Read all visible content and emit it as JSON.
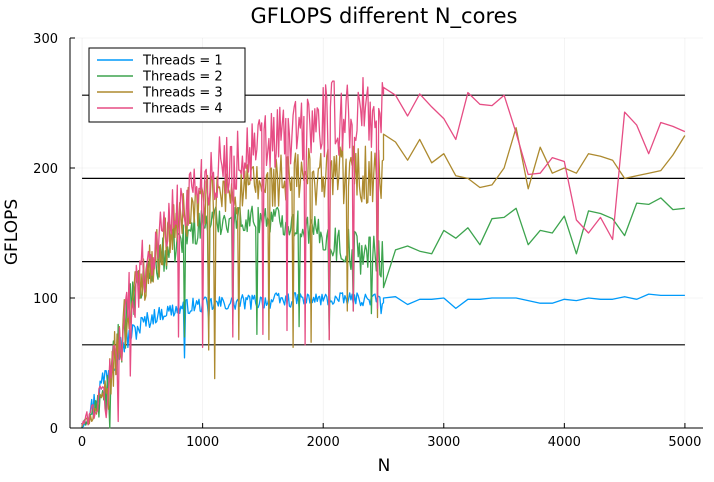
{
  "chart_data": {
    "type": "line",
    "title": "GFLOPS different N_cores",
    "xlabel": "N",
    "ylabel": "GFLOPS",
    "xlim": [
      -100,
      5150
    ],
    "ylim": [
      0,
      300
    ],
    "xticks": [
      0,
      1000,
      2000,
      3000,
      4000,
      5000
    ],
    "yticks": [
      0,
      100,
      200,
      300
    ],
    "grid": true,
    "legend_position": "top-left",
    "reference_lines": {
      "y": [
        64,
        128,
        192,
        256
      ],
      "x_range": [
        0,
        5000
      ],
      "color": "#000000"
    },
    "series": [
      {
        "name": "Threads = 1",
        "color": "#009AFA",
        "dense_segment": {
          "x_start": 0,
          "x_end": 2500,
          "step": 10,
          "envelope": [
            [
              0,
              0,
              3
            ],
            [
              100,
              8,
              30
            ],
            [
              200,
              30,
              55
            ],
            [
              300,
              50,
              72
            ],
            [
              400,
              62,
              80
            ],
            [
              500,
              72,
              88
            ],
            [
              600,
              80,
              92
            ],
            [
              700,
              84,
              95
            ],
            [
              800,
              86,
              98
            ],
            [
              900,
              88,
              100
            ],
            [
              1200,
              90,
              102
            ],
            [
              1600,
              92,
              104
            ],
            [
              2000,
              94,
              104
            ],
            [
              2500,
              94,
              104
            ]
          ],
          "dips": [
            [
              850,
              54
            ],
            [
              900,
              90
            ],
            [
              1050,
              84
            ],
            [
              2480,
              88
            ]
          ]
        },
        "x": [
          2500,
          2600,
          2700,
          2800,
          2900,
          3000,
          3100,
          3200,
          3300,
          3400,
          3500,
          3600,
          3700,
          3800,
          3900,
          4000,
          4100,
          4200,
          4300,
          4400,
          4500,
          4600,
          4700,
          4800,
          4900,
          5000
        ],
        "values": [
          100,
          101,
          95,
          99,
          99,
          100,
          92,
          99,
          99,
          100,
          100,
          100,
          98,
          96,
          96,
          99,
          98,
          100,
          99,
          99,
          101,
          99,
          103,
          102,
          102,
          102
        ]
      },
      {
        "name": "Threads = 2",
        "color": "#3DA44E",
        "dense_segment": {
          "x_start": 0,
          "x_end": 2500,
          "step": 10,
          "envelope": [
            [
              0,
              0,
              3
            ],
            [
              200,
              10,
              40
            ],
            [
              300,
              40,
              85
            ],
            [
              400,
              75,
              112
            ],
            [
              500,
              95,
              128
            ],
            [
              600,
              110,
              140
            ],
            [
              700,
              120,
              150
            ],
            [
              800,
              130,
              158
            ],
            [
              900,
              138,
              165
            ],
            [
              1000,
              145,
              170
            ],
            [
              1200,
              150,
              172
            ],
            [
              1400,
              150,
              172
            ],
            [
              1600,
              150,
              172
            ],
            [
              1800,
              145,
              168
            ],
            [
              2000,
              135,
              160
            ],
            [
              2200,
              120,
              155
            ],
            [
              2500,
              115,
              150
            ]
          ],
          "dips": [
            [
              230,
              0
            ],
            [
              850,
              70
            ],
            [
              1050,
              70
            ],
            [
              1250,
              80
            ],
            [
              1450,
              72
            ],
            [
              1800,
              78
            ],
            [
              2050,
              70
            ],
            [
              2250,
              90
            ],
            [
              2400,
              88
            ]
          ]
        },
        "x": [
          2500,
          2600,
          2700,
          2800,
          2900,
          3000,
          3100,
          3200,
          3300,
          3400,
          3500,
          3600,
          3700,
          3800,
          3900,
          4000,
          4100,
          4200,
          4300,
          4400,
          4500,
          4600,
          4700,
          4800,
          4900,
          5000
        ],
        "values": [
          108,
          137,
          140,
          136,
          134,
          152,
          146,
          154,
          141,
          161,
          162,
          169,
          141,
          152,
          150,
          163,
          134,
          167,
          165,
          161,
          148,
          173,
          172,
          177,
          168,
          169
        ]
      },
      {
        "name": "Threads = 3",
        "color": "#AD8A2F",
        "dense_segment": {
          "x_start": 0,
          "x_end": 2500,
          "step": 10,
          "envelope": [
            [
              0,
              0,
              3
            ],
            [
              200,
              8,
              38
            ],
            [
              300,
              38,
              90
            ],
            [
              400,
              72,
              118
            ],
            [
              500,
              95,
              135
            ],
            [
              600,
              110,
              150
            ],
            [
              700,
              125,
              165
            ],
            [
              800,
              138,
              178
            ],
            [
              900,
              148,
              188
            ],
            [
              1000,
              155,
              195
            ],
            [
              1200,
              160,
              200
            ],
            [
              1400,
              165,
              205
            ],
            [
              1600,
              168,
              210
            ],
            [
              1800,
              170,
              215
            ],
            [
              2000,
              172,
              220
            ],
            [
              2200,
              170,
              222
            ],
            [
              2500,
              165,
              222
            ]
          ],
          "dips": [
            [
              1050,
              60
            ],
            [
              1100,
              38
            ],
            [
              1300,
              68
            ],
            [
              1550,
              68
            ],
            [
              1750,
              62
            ],
            [
              1900,
              66
            ],
            [
              2050,
              68
            ],
            [
              2200,
              90
            ],
            [
              2450,
              85
            ]
          ]
        },
        "x": [
          2500,
          2600,
          2700,
          2800,
          2900,
          3000,
          3100,
          3200,
          3300,
          3400,
          3500,
          3600,
          3700,
          3800,
          3900,
          4000,
          4100,
          4200,
          4300,
          4400,
          4500,
          4600,
          4700,
          4800,
          4900,
          5000
        ],
        "values": [
          226,
          220,
          206,
          222,
          204,
          211,
          194,
          192,
          185,
          187,
          200,
          231,
          184,
          216,
          196,
          200,
          196,
          211,
          209,
          206,
          192,
          194,
          196,
          198,
          210,
          225
        ]
      },
      {
        "name": "Threads = 4",
        "color": "#E64D84",
        "dense_segment": {
          "x_start": 0,
          "x_end": 2500,
          "step": 10,
          "envelope": [
            [
              0,
              0,
              5
            ],
            [
              200,
              10,
              45
            ],
            [
              300,
              40,
              95
            ],
            [
              400,
              75,
              125
            ],
            [
              500,
              100,
              145
            ],
            [
              600,
              118,
              160
            ],
            [
              700,
              132,
              178
            ],
            [
              800,
              145,
              192
            ],
            [
              900,
              158,
              205
            ],
            [
              1000,
              168,
              215
            ],
            [
              1200,
              178,
              228
            ],
            [
              1400,
              185,
              240
            ],
            [
              1600,
              192,
              250
            ],
            [
              1800,
              198,
              258
            ],
            [
              2000,
              205,
              265
            ],
            [
              2200,
              210,
              270
            ],
            [
              2500,
              215,
              272
            ]
          ],
          "dips": [
            [
              200,
              8
            ],
            [
              300,
              5
            ],
            [
              400,
              40
            ],
            [
              800,
              70
            ],
            [
              1000,
              62
            ],
            [
              1250,
              70
            ],
            [
              1500,
              72
            ],
            [
              1700,
              75
            ],
            [
              1850,
              64
            ],
            [
              2050,
              68
            ],
            [
              2250,
              90
            ],
            [
              2450,
              92
            ]
          ]
        },
        "x": [
          2500,
          2600,
          2700,
          2800,
          2900,
          3000,
          3100,
          3200,
          3300,
          3400,
          3500,
          3600,
          3700,
          3800,
          3900,
          4000,
          4100,
          4200,
          4300,
          4400,
          4500,
          4600,
          4700,
          4800,
          4900,
          5000
        ],
        "values": [
          262,
          256,
          240,
          257,
          247,
          238,
          222,
          258,
          249,
          248,
          256,
          227,
          195,
          196,
          208,
          205,
          160,
          150,
          162,
          145,
          243,
          233,
          211,
          235,
          232,
          228
        ]
      }
    ]
  }
}
